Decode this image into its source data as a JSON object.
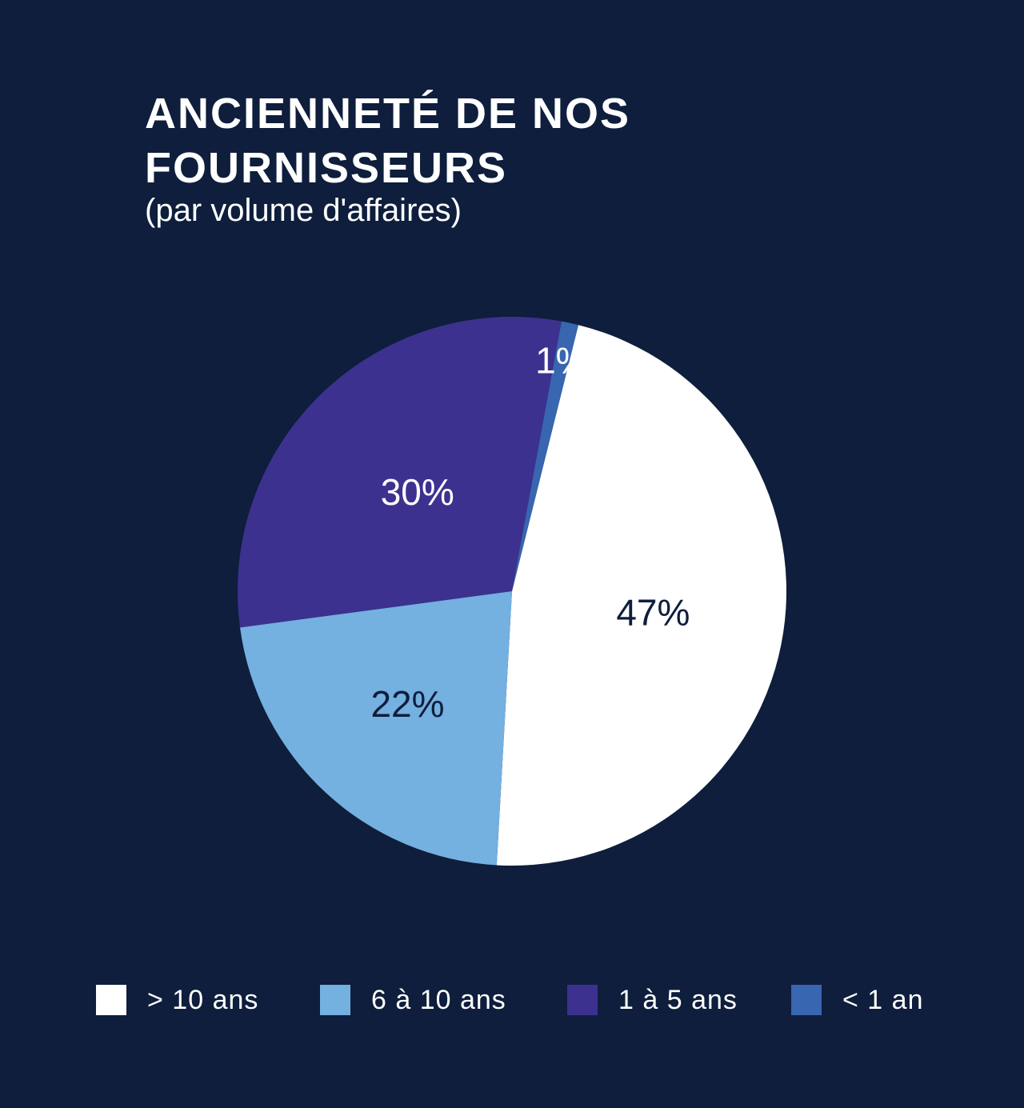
{
  "header": {
    "title": "ANCIENNETÉ DE NOS FOURNISSEURS",
    "subtitle": "(par volume d'affaires)"
  },
  "chart_data": {
    "type": "pie",
    "title": "ANCIENNETÉ DE NOS FOURNISSEURS",
    "subtitle": "(par volume d'affaires)",
    "unit": "%",
    "start_angle_deg": 14,
    "direction": "clockwise",
    "slices": [
      {
        "label": "> 10 ans",
        "value": 47,
        "display": "47%",
        "color": "#ffffff",
        "text_color": "#0e1e3c"
      },
      {
        "label": "6 à 10 ans",
        "value": 22,
        "display": "22%",
        "color": "#74b0e0",
        "text_color": "#0e1e3c"
      },
      {
        "label": "1 à 5 ans",
        "value": 30,
        "display": "30%",
        "color": "#3d3190",
        "text_color": "#ffffff"
      },
      {
        "label": "< 1 an",
        "value": 1,
        "display": "1%",
        "color": "#3866b0",
        "text_color": "#ffffff"
      }
    ],
    "legend_position": "bottom"
  },
  "legend": {
    "items": [
      {
        "label": "> 10 ans",
        "color": "#ffffff"
      },
      {
        "label": "6 à 10 ans",
        "color": "#74b0e0"
      },
      {
        "label": "1 à 5 ans",
        "color": "#3d3190"
      },
      {
        "label": "< 1 an",
        "color": "#3866b0"
      }
    ]
  },
  "colors": {
    "background": "#0e1e3c"
  }
}
